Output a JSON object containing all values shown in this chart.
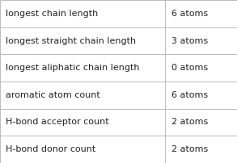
{
  "rows": [
    [
      "longest chain length",
      "6 atoms"
    ],
    [
      "longest straight chain length",
      "3 atoms"
    ],
    [
      "longest aliphatic chain length",
      "0 atoms"
    ],
    [
      "aromatic atom count",
      "6 atoms"
    ],
    [
      "H-bond acceptor count",
      "2 atoms"
    ],
    [
      "H-bond donor count",
      "2 atoms"
    ]
  ],
  "col_split": 0.695,
  "background_color": "#ffffff",
  "border_color": "#bbbbbb",
  "text_color": "#222222",
  "font_size": 8.0
}
